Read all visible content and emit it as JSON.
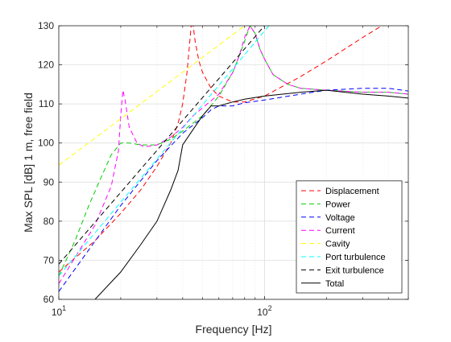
{
  "chart_data": {
    "type": "line",
    "title": "",
    "xlabel": "Frequency [Hz]",
    "ylabel": "Max SPL [dB] 1 m, free field",
    "x_scale": "log",
    "xlim": [
      10,
      500
    ],
    "ylim": [
      60,
      130
    ],
    "x_tick_labels": [
      {
        "value": 10,
        "base": "10",
        "exp": "1"
      },
      {
        "value": 100,
        "base": "10",
        "exp": "2"
      }
    ],
    "y_ticks": [
      60,
      70,
      80,
      90,
      100,
      110,
      120,
      130
    ],
    "grid": true,
    "legend_position": "bottom-right",
    "series": [
      {
        "name": "Displacement",
        "color": "#ff0000",
        "dash": "dashed",
        "x": [
          10,
          15,
          20,
          25,
          30,
          35,
          38,
          40,
          42,
          43,
          44,
          45,
          46,
          48,
          50,
          55,
          60,
          70,
          80,
          100,
          150,
          200,
          300,
          400,
          500
        ],
        "y": [
          67,
          75,
          82,
          88,
          94,
          100,
          105,
          110,
          118,
          124,
          130,
          130,
          126,
          121,
          118,
          114,
          112,
          110.5,
          110.5,
          112,
          117,
          121,
          127,
          131,
          134
        ]
      },
      {
        "name": "Power",
        "color": "#00cc00",
        "dash": "dashed",
        "x": [
          10,
          12,
          14,
          16,
          18,
          20,
          22,
          25,
          30,
          35,
          40,
          50,
          60,
          70,
          75,
          80,
          85,
          90,
          95,
          100,
          110,
          130,
          150,
          200,
          300,
          400,
          500
        ],
        "y": [
          66,
          75,
          84,
          91,
          97,
          100,
          100,
          99.5,
          99.5,
          101,
          103,
          107,
          112,
          118,
          122,
          126,
          130,
          128,
          124,
          121.5,
          117.5,
          115,
          114,
          113.5,
          113,
          113,
          112.5
        ]
      },
      {
        "name": "Voltage",
        "color": "#0000ff",
        "dash": "dashed",
        "x": [
          10,
          20,
          30,
          40,
          50,
          55,
          60,
          70,
          80,
          100,
          150,
          200,
          300,
          400,
          500
        ],
        "y": [
          62,
          84,
          95.5,
          102.5,
          106.5,
          108.5,
          109.5,
          109.5,
          110.3,
          111,
          112.5,
          113.5,
          114,
          114,
          113.3
        ]
      },
      {
        "name": "Current",
        "color": "#ff00ff",
        "dash": "dashed",
        "x": [
          10,
          15,
          18,
          19.5,
          20,
          20.5,
          21,
          22,
          24,
          26,
          30,
          35,
          40,
          45,
          50,
          60,
          70,
          75,
          80,
          85,
          90,
          95,
          100,
          110,
          130,
          150,
          200,
          300,
          400,
          500
        ],
        "y": [
          64,
          79,
          89,
          98,
          107,
          113.5,
          111,
          104,
          100,
          99,
          99.5,
          101.5,
          104,
          107,
          109,
          112.5,
          118,
          122,
          127,
          130,
          128,
          124,
          121.5,
          117.5,
          115,
          114,
          113.5,
          113,
          113,
          112.5
        ]
      },
      {
        "name": "Cavity",
        "color": "#ffff00",
        "dash": "dashed",
        "x": [
          10,
          80
        ],
        "y": [
          94.3,
          130
        ]
      },
      {
        "name": "Port turbulence",
        "color": "#00ffff",
        "dash": "dashed",
        "x": [
          10,
          105
        ],
        "y": [
          66,
          130
        ]
      },
      {
        "name": "Exit turbulence",
        "color": "#000000",
        "dash": "dashed",
        "x": [
          10,
          100
        ],
        "y": [
          69,
          130
        ]
      },
      {
        "name": "Total",
        "color": "#000000",
        "dash": "solid",
        "x": [
          15,
          20,
          25,
          30,
          35,
          38,
          40,
          45,
          50,
          55,
          60,
          70,
          80,
          100,
          150,
          200,
          300,
          400,
          500
        ],
        "y": [
          60,
          67,
          74,
          80,
          88,
          93,
          99.5,
          103.5,
          107,
          109.5,
          109.5,
          110.5,
          111.2,
          112,
          113,
          113.5,
          112.5,
          112,
          111.5
        ]
      }
    ]
  }
}
